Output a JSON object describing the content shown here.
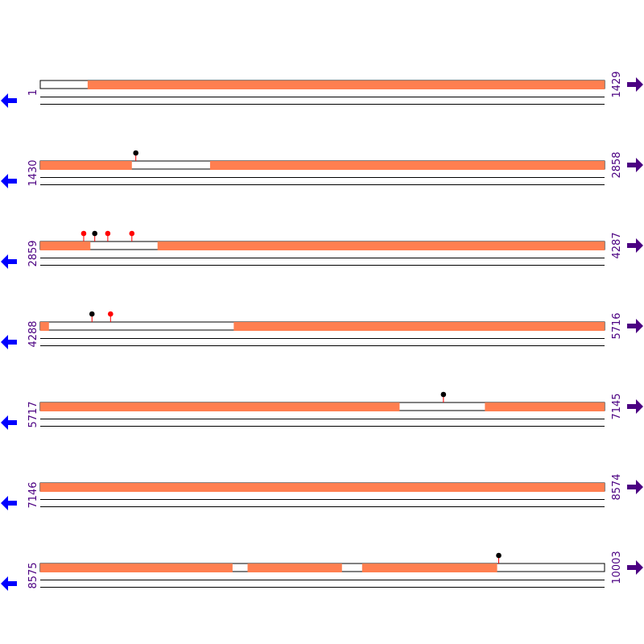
{
  "seq_length": 10003,
  "colors": {
    "feature": "#ff7f50",
    "line": "#000000",
    "label": "#4b0082",
    "left_arrow": "#0000ff",
    "right_arrow": "#4b0082",
    "stem": "#ff0000",
    "marker_black": "#000000",
    "marker_red": "#ff0000"
  },
  "icons": {
    "left": "left-arrow-icon",
    "right": "right-arrow-icon"
  },
  "rows": [
    {
      "start": "1",
      "end": "1429",
      "s": 1,
      "e": 1429,
      "features": [
        [
          121,
          1429
        ]
      ],
      "markers": []
    },
    {
      "start": "1430",
      "end": "2858",
      "s": 1430,
      "e": 2858,
      "features": [
        [
          1430,
          1661
        ],
        [
          1860,
          2858
        ]
      ],
      "markers": [
        {
          "pos": 1672,
          "color": "black"
        }
      ]
    },
    {
      "start": "2859",
      "end": "4287",
      "s": 2859,
      "e": 4287,
      "features": [
        [
          2859,
          2985
        ],
        [
          3156,
          4287
        ]
      ],
      "markers": [
        {
          "pos": 2969,
          "color": "red"
        },
        {
          "pos": 2997,
          "color": "black"
        },
        {
          "pos": 3030,
          "color": "red"
        },
        {
          "pos": 3091,
          "color": "red"
        }
      ]
    },
    {
      "start": "4288",
      "end": "5716",
      "s": 4288,
      "e": 5716,
      "features": [
        [
          4288,
          4309
        ],
        [
          4778,
          5716
        ]
      ],
      "markers": [
        {
          "pos": 4419,
          "color": "black"
        },
        {
          "pos": 4466,
          "color": "red"
        }
      ]
    },
    {
      "start": "5717",
      "end": "7145",
      "s": 5717,
      "e": 7145,
      "features": [
        [
          5717,
          6626
        ],
        [
          6843,
          7145
        ]
      ],
      "markers": [
        {
          "pos": 6738,
          "color": "black"
        }
      ]
    },
    {
      "start": "7146",
      "end": "8574",
      "s": 7146,
      "e": 8574,
      "features": [
        [
          7146,
          8574
        ]
      ],
      "markers": []
    },
    {
      "start": "8575",
      "end": "10003",
      "s": 8575,
      "e": 10003,
      "features": [
        [
          8575,
          9061
        ],
        [
          9100,
          9338
        ],
        [
          9390,
          9731
        ]
      ],
      "markers": [
        {
          "pos": 9736,
          "color": "black"
        }
      ]
    }
  ]
}
